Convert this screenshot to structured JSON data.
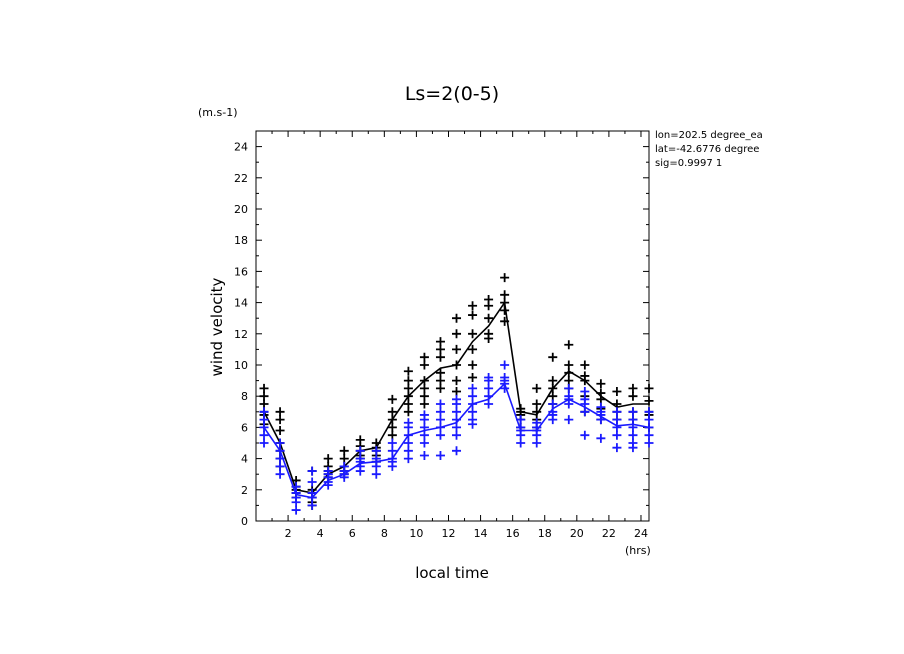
{
  "chart_data": {
    "type": "line",
    "title": "Ls=2(0-5)",
    "xlabel": "local time",
    "ylabel": "wind velocity",
    "x_unit": "(hrs)",
    "y_unit": "(m.s-1)",
    "xlim": [
      0,
      24.5
    ],
    "ylim": [
      0,
      25
    ],
    "x_ticks": [
      2,
      4,
      6,
      8,
      10,
      12,
      14,
      16,
      18,
      20,
      22,
      24
    ],
    "y_ticks": [
      0,
      2,
      4,
      6,
      8,
      10,
      12,
      14,
      16,
      18,
      20,
      22,
      24
    ],
    "grid": false,
    "info": [
      "lon=202.5 degree_ea",
      "lat=-42.6776 degree",
      "sig=0.9997 1"
    ],
    "x": [
      0.5,
      1.5,
      2.5,
      3.5,
      4.5,
      5.5,
      6.5,
      7.5,
      8.5,
      9.5,
      10.5,
      11.5,
      12.5,
      13.5,
      14.5,
      15.5,
      16.5,
      17.5,
      18.5,
      19.5,
      20.5,
      21.5,
      22.5,
      23.5,
      24.5
    ],
    "series": [
      {
        "color": "#000000",
        "mean": [
          7.0,
          5.0,
          2.0,
          1.8,
          3.0,
          3.5,
          4.5,
          4.7,
          6.5,
          8.0,
          9.0,
          9.8,
          10.0,
          11.5,
          12.5,
          14.0,
          7.0,
          6.8,
          8.5,
          9.6,
          9.0,
          8.0,
          7.3,
          7.5,
          7.5
        ],
        "points": [
          [
            8.5,
            8.0,
            7.5,
            7.0,
            6.8,
            6.2
          ],
          [
            7.0,
            6.5,
            5.8,
            5.0,
            4.5,
            4.0,
            3.5
          ],
          [
            2.6,
            2.2,
            2.0,
            1.8,
            1.5
          ],
          [
            3.2,
            2.0,
            1.8,
            1.5,
            1.2,
            1.0
          ],
          [
            4.0,
            3.5,
            3.2,
            3.0,
            2.8
          ],
          [
            4.5,
            4.0,
            3.5,
            3.2,
            3.0
          ],
          [
            5.2,
            4.8,
            4.5,
            4.2,
            4.0
          ],
          [
            5.0,
            4.7,
            4.5,
            4.2,
            3.8
          ],
          [
            7.8,
            7.0,
            6.5,
            6.0,
            5.5
          ],
          [
            9.6,
            9.0,
            8.5,
            8.0,
            7.5,
            7.0
          ],
          [
            10.5,
            10.0,
            9.0,
            8.5,
            8.0,
            7.5
          ],
          [
            11.5,
            11.0,
            10.5,
            9.5,
            9.0,
            8.5
          ],
          [
            13.0,
            12.0,
            11.0,
            10.0,
            9.0,
            8.3
          ],
          [
            13.8,
            13.2,
            12.0,
            11.0,
            10.0,
            9.2
          ],
          [
            14.2,
            13.8,
            13.0,
            12.0,
            11.7
          ],
          [
            15.6,
            14.5,
            14.0,
            13.5,
            12.8
          ],
          [
            7.2,
            7.0,
            6.8,
            6.5,
            6.0
          ],
          [
            8.5,
            7.5,
            7.0,
            6.5,
            6.0
          ],
          [
            10.5,
            9.0,
            8.5,
            8.0,
            7.5
          ],
          [
            11.3,
            10.0,
            9.5,
            9.0,
            8.5
          ],
          [
            10.0,
            9.3,
            9.0,
            8.0,
            7.0
          ],
          [
            8.8,
            8.2,
            7.8,
            7.2,
            6.5
          ],
          [
            8.3,
            7.5,
            7.0,
            6.5
          ],
          [
            8.5,
            8.0,
            7.0,
            6.5
          ],
          [
            8.5,
            7.7,
            7.0,
            6.8,
            6.0
          ]
        ]
      },
      {
        "color": "#1a1aff",
        "mean": [
          6.0,
          4.5,
          1.7,
          1.5,
          2.6,
          3.0,
          3.7,
          3.8,
          4.0,
          5.5,
          5.8,
          6.0,
          6.3,
          7.5,
          7.8,
          8.8,
          5.8,
          5.8,
          7.2,
          7.8,
          7.3,
          6.7,
          6.1,
          6.2,
          6.0
        ],
        "points": [
          [
            7.0,
            6.5,
            6.0,
            5.5,
            5.0
          ],
          [
            5.0,
            4.5,
            4.0,
            3.5,
            3.0
          ],
          [
            2.2,
            1.8,
            1.5,
            1.2,
            0.7
          ],
          [
            3.2,
            2.5,
            1.8,
            1.5,
            1.0
          ],
          [
            3.2,
            3.0,
            2.8,
            2.5,
            2.3
          ],
          [
            3.5,
            3.2,
            3.0,
            2.8
          ],
          [
            4.5,
            4.0,
            3.8,
            3.5,
            3.2
          ],
          [
            4.5,
            4.0,
            3.8,
            3.5,
            3.0
          ],
          [
            5.0,
            4.5,
            4.0,
            3.8,
            3.5
          ],
          [
            6.3,
            6.0,
            5.5,
            5.0,
            4.5,
            4.0
          ],
          [
            6.8,
            6.5,
            6.0,
            5.5,
            5.0,
            4.2
          ],
          [
            7.5,
            7.0,
            6.5,
            6.0,
            5.5,
            4.2
          ],
          [
            7.8,
            7.5,
            7.0,
            6.5,
            6.0,
            5.5,
            4.5
          ],
          [
            8.5,
            8.0,
            7.5,
            7.0,
            6.5,
            6.2
          ],
          [
            9.2,
            9.0,
            8.5,
            8.0,
            7.5
          ],
          [
            10.0,
            9.2,
            9.0,
            8.8,
            8.5
          ],
          [
            6.5,
            6.0,
            5.8,
            5.5,
            5.0
          ],
          [
            6.3,
            6.0,
            5.8,
            5.5,
            5.0
          ],
          [
            7.5,
            7.0,
            6.8,
            6.5
          ],
          [
            8.5,
            8.0,
            7.8,
            7.5,
            6.5
          ],
          [
            8.3,
            7.8,
            7.5,
            7.0,
            5.5
          ],
          [
            7.3,
            7.0,
            6.8,
            6.5,
            5.3
          ],
          [
            7.0,
            6.5,
            6.0,
            5.5,
            4.7
          ],
          [
            7.0,
            6.5,
            6.0,
            5.5,
            5.0,
            4.7
          ],
          [
            7.0,
            6.5,
            6.0,
            5.5,
            5.0
          ]
        ]
      }
    ]
  }
}
